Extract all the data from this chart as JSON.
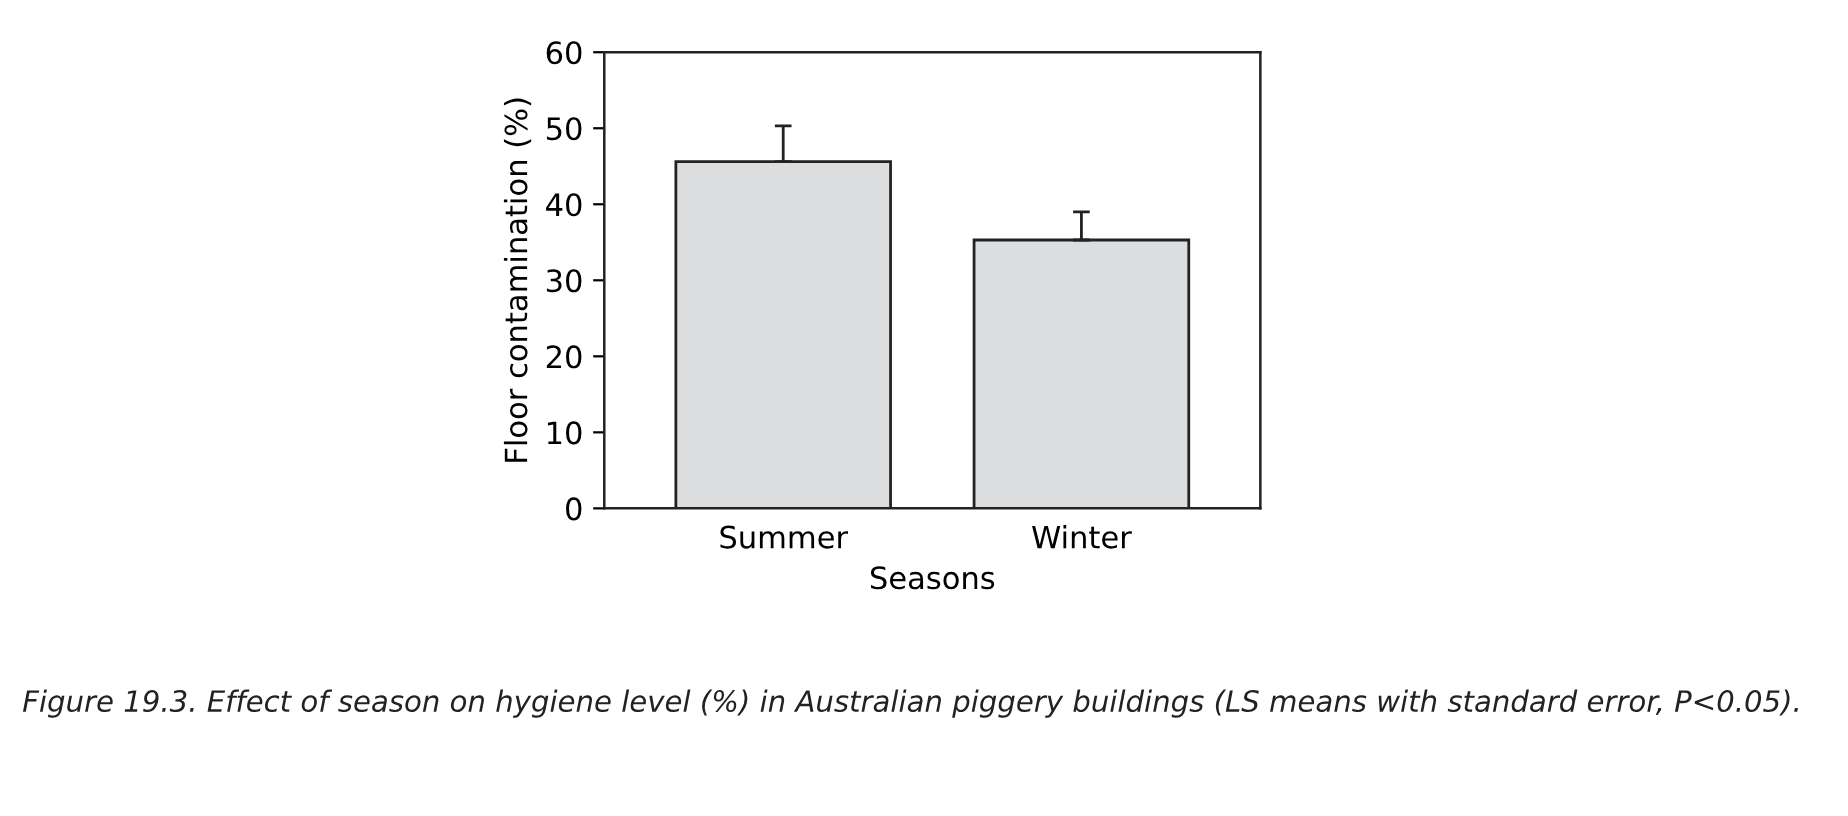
{
  "chart_data": {
    "type": "bar",
    "categories": [
      "Summer",
      "Winter"
    ],
    "values": [
      45.6,
      35.3
    ],
    "errors": [
      [
        45.6,
        50.3
      ],
      [
        35.3,
        39.0
      ]
    ],
    "color": "#dcdddf",
    "xlabel": "Seasons",
    "ylabel": "Floor contamination (%)",
    "ylim": [
      0,
      60
    ],
    "yticks": [
      0,
      10,
      20,
      30,
      40,
      50,
      60
    ],
    "grid": false,
    "annotations": [
      "Figure 19.3. Effect of season on hygiene level (%) in Australian piggery buildings (LS means with standard error, P<0.05)."
    ]
  }
}
